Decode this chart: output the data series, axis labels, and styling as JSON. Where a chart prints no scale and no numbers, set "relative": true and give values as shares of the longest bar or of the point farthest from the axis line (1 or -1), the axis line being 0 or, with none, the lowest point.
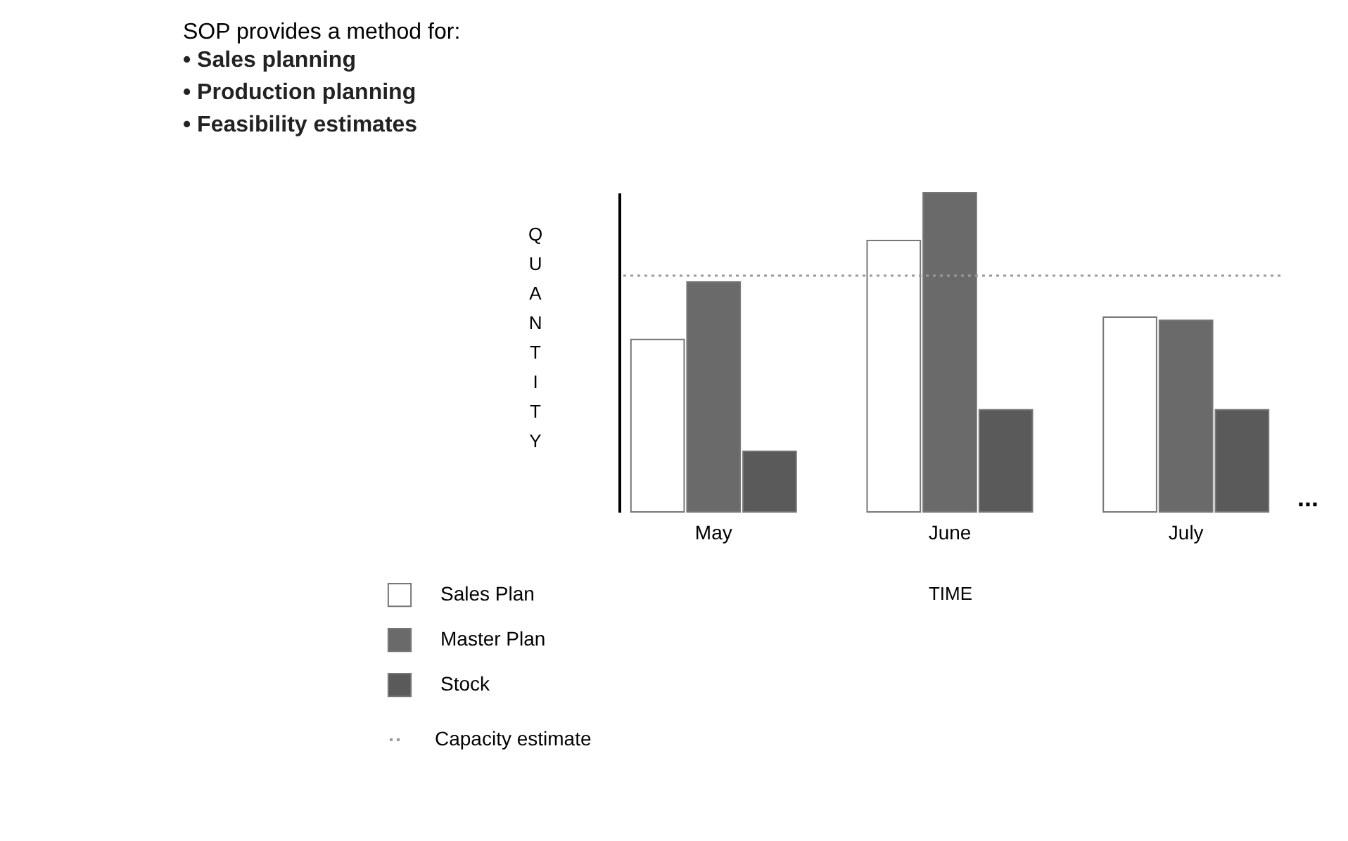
{
  "chart_data": {
    "type": "bar",
    "title": "SOP provides a method for:",
    "subtitle": "• Sales planning\n• Production planning\n• Feasibility estimates",
    "xlabel": "TIME",
    "ylabel": "QUANTITY",
    "relative": true,
    "categories": [
      "May",
      "June",
      "July"
    ],
    "series": [
      {
        "name": "Sales Plan",
        "color": "#ffffff",
        "values": [
          0.54,
          0.85,
          0.61
        ]
      },
      {
        "name": "Master Plan",
        "color": "#6a6a6a",
        "values": [
          0.72,
          1,
          0.6
        ]
      },
      {
        "name": "Stock",
        "color": "#5a5a5a",
        "values": [
          0.19,
          0.32,
          0.32
        ]
      }
    ],
    "ref_lines": [
      {
        "axis": "y",
        "value": 0.74,
        "label": "Capacity estimate",
        "color": "#999999",
        "line_style": "dotted"
      }
    ],
    "annotations": [
      "..."
    ],
    "grid": false,
    "legend": "bottom left"
  }
}
